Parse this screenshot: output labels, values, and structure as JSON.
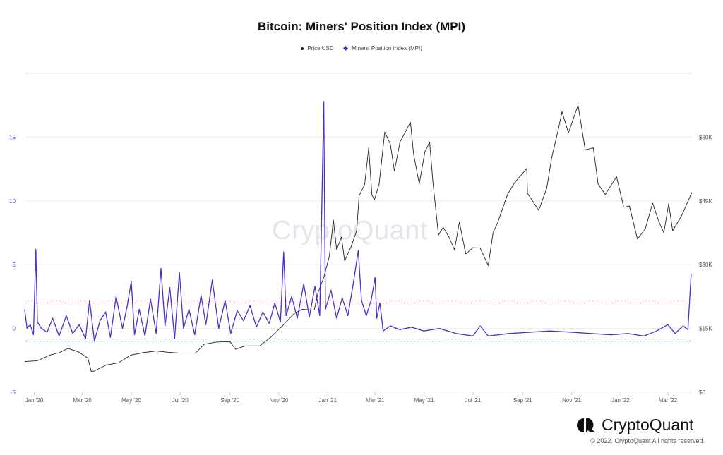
{
  "chart_data": {
    "type": "line",
    "title": "Bitcoin: Miners' Position Index (MPI)",
    "legend": [
      {
        "label": "Price USD",
        "marker": "dot",
        "color": "#222222"
      },
      {
        "label": "Miners' Position Index (MPI)",
        "marker": "diamond",
        "color": "#4b2fc7"
      }
    ],
    "legend_position": "top-center",
    "x_axis": {
      "range": [
        "2019-12-21",
        "2022-03-31"
      ],
      "ticks": [
        {
          "date": "2020-01-01",
          "label": "Jan '20"
        },
        {
          "date": "2020-03-01",
          "label": "Mar '20"
        },
        {
          "date": "2020-05-01",
          "label": "May '20"
        },
        {
          "date": "2020-07-01",
          "label": "Jul '20"
        },
        {
          "date": "2020-09-01",
          "label": "Sep '20"
        },
        {
          "date": "2020-11-01",
          "label": "Nov '20"
        },
        {
          "date": "2021-01-01",
          "label": "Jan '21"
        },
        {
          "date": "2021-03-01",
          "label": "Mar '21"
        },
        {
          "date": "2021-05-01",
          "label": "May '21"
        },
        {
          "date": "2021-07-01",
          "label": "Jul '21"
        },
        {
          "date": "2021-09-01",
          "label": "Sep '21"
        },
        {
          "date": "2021-11-01",
          "label": "Nov '21"
        },
        {
          "date": "2022-01-01",
          "label": "Jan '22"
        },
        {
          "date": "2022-03-01",
          "label": "Mar '22"
        }
      ]
    },
    "y_left": {
      "range": [
        -5,
        20
      ],
      "ticks": [
        {
          "value": -5,
          "label": "-5"
        },
        {
          "value": 0,
          "label": "0"
        },
        {
          "value": 5,
          "label": "5"
        },
        {
          "value": 10,
          "label": "10"
        },
        {
          "value": 15,
          "label": "15"
        }
      ],
      "color": "#5a4bc7"
    },
    "y_right": {
      "range": [
        0,
        75000
      ],
      "ticks": [
        {
          "value": 0,
          "label": "$0"
        },
        {
          "value": 15000,
          "label": "$15K"
        },
        {
          "value": 30000,
          "label": "$30K"
        },
        {
          "value": 45000,
          "label": "$45K"
        },
        {
          "value": 60000,
          "label": "$60K"
        }
      ]
    },
    "reference_lines": [
      {
        "axis": "left",
        "value": 2.0,
        "color": "#e0736f",
        "style": "dashed"
      },
      {
        "axis": "left",
        "value": -1.0,
        "color": "#4caf50",
        "style": "dashed"
      }
    ],
    "grid": true,
    "series": [
      {
        "name": "Price USD",
        "axis": "right",
        "color": "#222222",
        "points": [
          [
            "2019-12-20",
            7200
          ],
          [
            "2020-01-05",
            7400
          ],
          [
            "2020-01-20",
            8700
          ],
          [
            "2020-02-01",
            9300
          ],
          [
            "2020-02-12",
            10300
          ],
          [
            "2020-02-25",
            9500
          ],
          [
            "2020-03-08",
            8000
          ],
          [
            "2020-03-12",
            4900
          ],
          [
            "2020-03-16",
            5000
          ],
          [
            "2020-03-31",
            6400
          ],
          [
            "2020-04-15",
            6900
          ],
          [
            "2020-04-30",
            8700
          ],
          [
            "2020-05-15",
            9300
          ],
          [
            "2020-06-01",
            9700
          ],
          [
            "2020-06-15",
            9400
          ],
          [
            "2020-07-01",
            9200
          ],
          [
            "2020-07-20",
            9200
          ],
          [
            "2020-07-31",
            11300
          ],
          [
            "2020-08-15",
            11800
          ],
          [
            "2020-09-01",
            11900
          ],
          [
            "2020-09-08",
            10100
          ],
          [
            "2020-09-20",
            10900
          ],
          [
            "2020-10-08",
            10900
          ],
          [
            "2020-10-21",
            12800
          ],
          [
            "2020-11-05",
            15500
          ],
          [
            "2020-11-20",
            18500
          ],
          [
            "2020-11-30",
            19500
          ],
          [
            "2020-12-15",
            19300
          ],
          [
            "2020-12-20",
            23500
          ],
          [
            "2020-12-27",
            27000
          ],
          [
            "2021-01-03",
            32000
          ],
          [
            "2021-01-08",
            40500
          ],
          [
            "2021-01-12",
            33500
          ],
          [
            "2021-01-18",
            36500
          ],
          [
            "2021-01-22",
            30900
          ],
          [
            "2021-01-30",
            34200
          ],
          [
            "2021-02-06",
            38000
          ],
          [
            "2021-02-09",
            46200
          ],
          [
            "2021-02-16",
            48900
          ],
          [
            "2021-02-21",
            57500
          ],
          [
            "2021-02-25",
            46500
          ],
          [
            "2021-02-28",
            45200
          ],
          [
            "2021-03-06",
            49000
          ],
          [
            "2021-03-13",
            61200
          ],
          [
            "2021-03-20",
            58300
          ],
          [
            "2021-03-25",
            52000
          ],
          [
            "2021-04-01",
            58800
          ],
          [
            "2021-04-14",
            63500
          ],
          [
            "2021-04-18",
            56000
          ],
          [
            "2021-04-25",
            49000
          ],
          [
            "2021-05-02",
            56500
          ],
          [
            "2021-05-08",
            58800
          ],
          [
            "2021-05-12",
            49500
          ],
          [
            "2021-05-19",
            37000
          ],
          [
            "2021-05-25",
            38800
          ],
          [
            "2021-06-01",
            36500
          ],
          [
            "2021-06-08",
            33500
          ],
          [
            "2021-06-14",
            40000
          ],
          [
            "2021-06-22",
            32500
          ],
          [
            "2021-07-01",
            34000
          ],
          [
            "2021-07-10",
            33900
          ],
          [
            "2021-07-20",
            29800
          ],
          [
            "2021-07-26",
            37500
          ],
          [
            "2021-08-01",
            40000
          ],
          [
            "2021-08-13",
            46500
          ],
          [
            "2021-08-22",
            49300
          ],
          [
            "2021-09-06",
            52600
          ],
          [
            "2021-09-07",
            46800
          ],
          [
            "2021-09-21",
            42800
          ],
          [
            "2021-10-01",
            48000
          ],
          [
            "2021-10-07",
            55000
          ],
          [
            "2021-10-15",
            61500
          ],
          [
            "2021-10-20",
            66000
          ],
          [
            "2021-10-28",
            61000
          ],
          [
            "2021-11-09",
            67500
          ],
          [
            "2021-11-18",
            57000
          ],
          [
            "2021-11-28",
            57500
          ],
          [
            "2021-12-04",
            49000
          ],
          [
            "2021-12-13",
            46500
          ],
          [
            "2021-12-27",
            50700
          ],
          [
            "2022-01-05",
            43500
          ],
          [
            "2022-01-12",
            43800
          ],
          [
            "2022-01-22",
            36000
          ],
          [
            "2022-02-01",
            38500
          ],
          [
            "2022-02-10",
            44500
          ],
          [
            "2022-02-18",
            40000
          ],
          [
            "2022-02-24",
            37500
          ],
          [
            "2022-03-02",
            44400
          ],
          [
            "2022-03-07",
            38000
          ],
          [
            "2022-03-18",
            41500
          ],
          [
            "2022-03-24",
            44000
          ],
          [
            "2022-03-31",
            47000
          ]
        ]
      },
      {
        "name": "Miners' Position Index (MPI)",
        "axis": "left",
        "color": "#4b2fc7",
        "points": [
          [
            "2019-12-20",
            1.5
          ],
          [
            "2019-12-23",
            0.0
          ],
          [
            "2019-12-27",
            0.3
          ],
          [
            "2019-12-31",
            -0.5
          ],
          [
            "2020-01-03",
            6.2
          ],
          [
            "2020-01-05",
            0.5
          ],
          [
            "2020-01-10",
            0.0
          ],
          [
            "2020-01-17",
            -0.3
          ],
          [
            "2020-01-24",
            0.8
          ],
          [
            "2020-02-01",
            -0.6
          ],
          [
            "2020-02-10",
            1.0
          ],
          [
            "2020-02-18",
            -0.4
          ],
          [
            "2020-02-26",
            0.3
          ],
          [
            "2020-03-05",
            -0.8
          ],
          [
            "2020-03-10",
            2.2
          ],
          [
            "2020-03-16",
            -1.0
          ],
          [
            "2020-03-23",
            0.6
          ],
          [
            "2020-03-30",
            1.3
          ],
          [
            "2020-04-05",
            -0.7
          ],
          [
            "2020-04-12",
            2.5
          ],
          [
            "2020-04-20",
            0.0
          ],
          [
            "2020-04-26",
            1.8
          ],
          [
            "2020-05-01",
            3.7
          ],
          [
            "2020-05-05",
            -0.5
          ],
          [
            "2020-05-11",
            1.5
          ],
          [
            "2020-05-18",
            -0.6
          ],
          [
            "2020-05-25",
            2.3
          ],
          [
            "2020-06-01",
            -0.4
          ],
          [
            "2020-06-07",
            4.7
          ],
          [
            "2020-06-12",
            0.2
          ],
          [
            "2020-06-18",
            3.2
          ],
          [
            "2020-06-24",
            -0.8
          ],
          [
            "2020-06-30",
            4.4
          ],
          [
            "2020-07-05",
            0.0
          ],
          [
            "2020-07-12",
            1.5
          ],
          [
            "2020-07-19",
            -0.5
          ],
          [
            "2020-07-27",
            2.6
          ],
          [
            "2020-08-02",
            0.3
          ],
          [
            "2020-08-10",
            3.8
          ],
          [
            "2020-08-18",
            0.0
          ],
          [
            "2020-08-26",
            2.2
          ],
          [
            "2020-09-02",
            -0.4
          ],
          [
            "2020-09-10",
            1.4
          ],
          [
            "2020-09-18",
            0.6
          ],
          [
            "2020-09-26",
            1.8
          ],
          [
            "2020-10-04",
            0.1
          ],
          [
            "2020-10-12",
            1.3
          ],
          [
            "2020-10-20",
            0.4
          ],
          [
            "2020-10-27",
            2.0
          ],
          [
            "2020-11-03",
            0.5
          ],
          [
            "2020-11-07",
            6.0
          ],
          [
            "2020-11-10",
            1.0
          ],
          [
            "2020-11-17",
            2.5
          ],
          [
            "2020-11-24",
            0.8
          ],
          [
            "2020-12-02",
            3.5
          ],
          [
            "2020-12-09",
            0.9
          ],
          [
            "2020-12-16",
            3.3
          ],
          [
            "2020-12-22",
            1.0
          ],
          [
            "2020-12-27",
            17.8
          ],
          [
            "2020-12-29",
            1.5
          ],
          [
            "2021-01-05",
            3.0
          ],
          [
            "2021-01-12",
            0.8
          ],
          [
            "2021-01-19",
            2.4
          ],
          [
            "2021-01-26",
            1.0
          ],
          [
            "2021-02-02",
            3.6
          ],
          [
            "2021-02-08",
            6.1
          ],
          [
            "2021-02-12",
            2.2
          ],
          [
            "2021-02-18",
            1.0
          ],
          [
            "2021-02-24",
            2.2
          ],
          [
            "2021-03-01",
            4.0
          ],
          [
            "2021-03-03",
            0.8
          ],
          [
            "2021-03-07",
            2.0
          ],
          [
            "2021-03-11",
            -0.2
          ],
          [
            "2021-03-20",
            0.2
          ],
          [
            "2021-04-01",
            -0.1
          ],
          [
            "2021-04-15",
            0.1
          ],
          [
            "2021-05-01",
            -0.2
          ],
          [
            "2021-05-20",
            0.0
          ],
          [
            "2021-06-10",
            -0.4
          ],
          [
            "2021-07-01",
            -0.6
          ],
          [
            "2021-07-10",
            0.2
          ],
          [
            "2021-07-20",
            -0.6
          ],
          [
            "2021-08-15",
            -0.4
          ],
          [
            "2021-09-10",
            -0.3
          ],
          [
            "2021-10-05",
            -0.2
          ],
          [
            "2021-11-01",
            -0.3
          ],
          [
            "2021-11-25",
            -0.4
          ],
          [
            "2021-12-20",
            -0.5
          ],
          [
            "2022-01-10",
            -0.4
          ],
          [
            "2022-01-30",
            -0.6
          ],
          [
            "2022-02-15",
            -0.2
          ],
          [
            "2022-03-01",
            0.3
          ],
          [
            "2022-03-10",
            -0.4
          ],
          [
            "2022-03-20",
            0.2
          ],
          [
            "2022-03-26",
            -0.1
          ],
          [
            "2022-03-30",
            4.3
          ]
        ]
      }
    ]
  },
  "brand": {
    "name": "CryptoQuant",
    "copyright": "© 2022. CryptoQuant All rights reserved.",
    "watermark": "CryptoQuant"
  }
}
